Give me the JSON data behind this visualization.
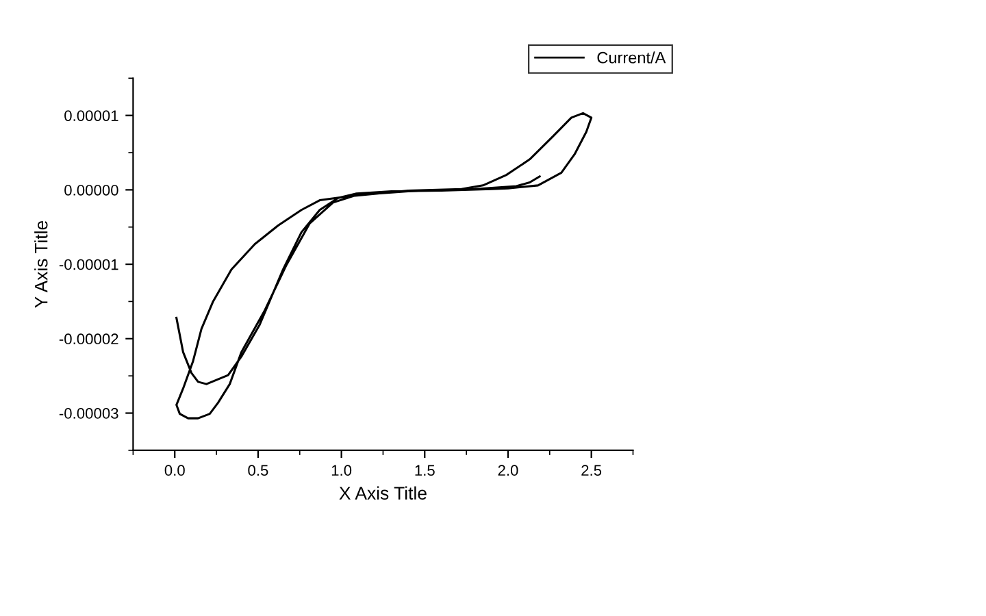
{
  "chart_data": {
    "type": "line",
    "xlabel": "X Axis Title",
    "ylabel": "Y Axis Title",
    "xlim": [
      -0.25,
      2.75
    ],
    "xticks": [
      {
        "value": 0,
        "label": "0.0"
      },
      {
        "value": 0.5,
        "label": "0.5"
      },
      {
        "value": 1,
        "label": "1.0"
      },
      {
        "value": 1.5,
        "label": "1.5"
      },
      {
        "value": 2,
        "label": "2.0"
      },
      {
        "value": 2.5,
        "label": "2.5"
      }
    ],
    "ylim": [
      -3.5e-05,
      1.5e-05
    ],
    "yticks": [
      {
        "value": -3e-05,
        "label": "-0.00003"
      },
      {
        "value": -2e-05,
        "label": "-0.00002"
      },
      {
        "value": -1e-05,
        "label": "-0.00001"
      },
      {
        "value": 0,
        "label": "0.00000"
      },
      {
        "value": 1e-05,
        "label": "0.00001"
      }
    ],
    "grid": false,
    "legend": "top right",
    "marker": "none",
    "line_style": "solid",
    "series": [
      {
        "name": "Current/A",
        "color": "#000000",
        "x": [
          0.01,
          0.05,
          0.1,
          0.14,
          0.19,
          0.32,
          0.4,
          0.51,
          0.65,
          0.76,
          0.87,
          0.98,
          1.09,
          1.3,
          1.6,
          1.9,
          2.0,
          2.18,
          2.32,
          2.4,
          2.47,
          2.5,
          2.45,
          2.38,
          2.27,
          2.13,
          1.99,
          1.85,
          1.72,
          1.4,
          1.03,
          0.87,
          0.76,
          0.62,
          0.48,
          0.34,
          0.23,
          0.16,
          0.11,
          0.05,
          0.01,
          0.03,
          0.08,
          0.14,
          0.21,
          0.26,
          0.33,
          0.4,
          0.54,
          0.67,
          0.81,
          0.95,
          1.09,
          1.4,
          1.8,
          2.05,
          2.13,
          2.19
        ],
        "values": [
          -1.72e-05,
          -2.18e-05,
          -2.46e-05,
          -2.58e-05,
          -2.61e-05,
          -2.49e-05,
          -2.24e-05,
          -1.81e-05,
          -1.07e-05,
          -5.7e-06,
          -2.7e-06,
          -1.1e-06,
          -5e-07,
          -2e-07,
          -1e-07,
          1e-07,
          2e-07,
          6e-07,
          2.3e-06,
          4.8e-06,
          7.8e-06,
          9.7e-06,
          1.03e-05,
          9.7e-06,
          7.2e-06,
          4.1e-06,
          2e-06,
          6e-07,
          1e-07,
          -1e-07,
          -9e-07,
          -1.4e-06,
          -2.7e-06,
          -4.8e-06,
          -7.3e-06,
          -1.07e-05,
          -1.5e-05,
          -1.87e-05,
          -2.3e-05,
          -2.67e-05,
          -2.89e-05,
          -3.01e-05,
          -3.07e-05,
          -3.07e-05,
          -3.01e-05,
          -2.86e-05,
          -2.61e-05,
          -2.18e-05,
          -1.62e-05,
          -1.01e-05,
          -4.5e-06,
          -1.7e-06,
          -7e-07,
          -2e-07,
          1e-07,
          5e-07,
          1e-06,
          1.8e-06
        ]
      }
    ]
  }
}
